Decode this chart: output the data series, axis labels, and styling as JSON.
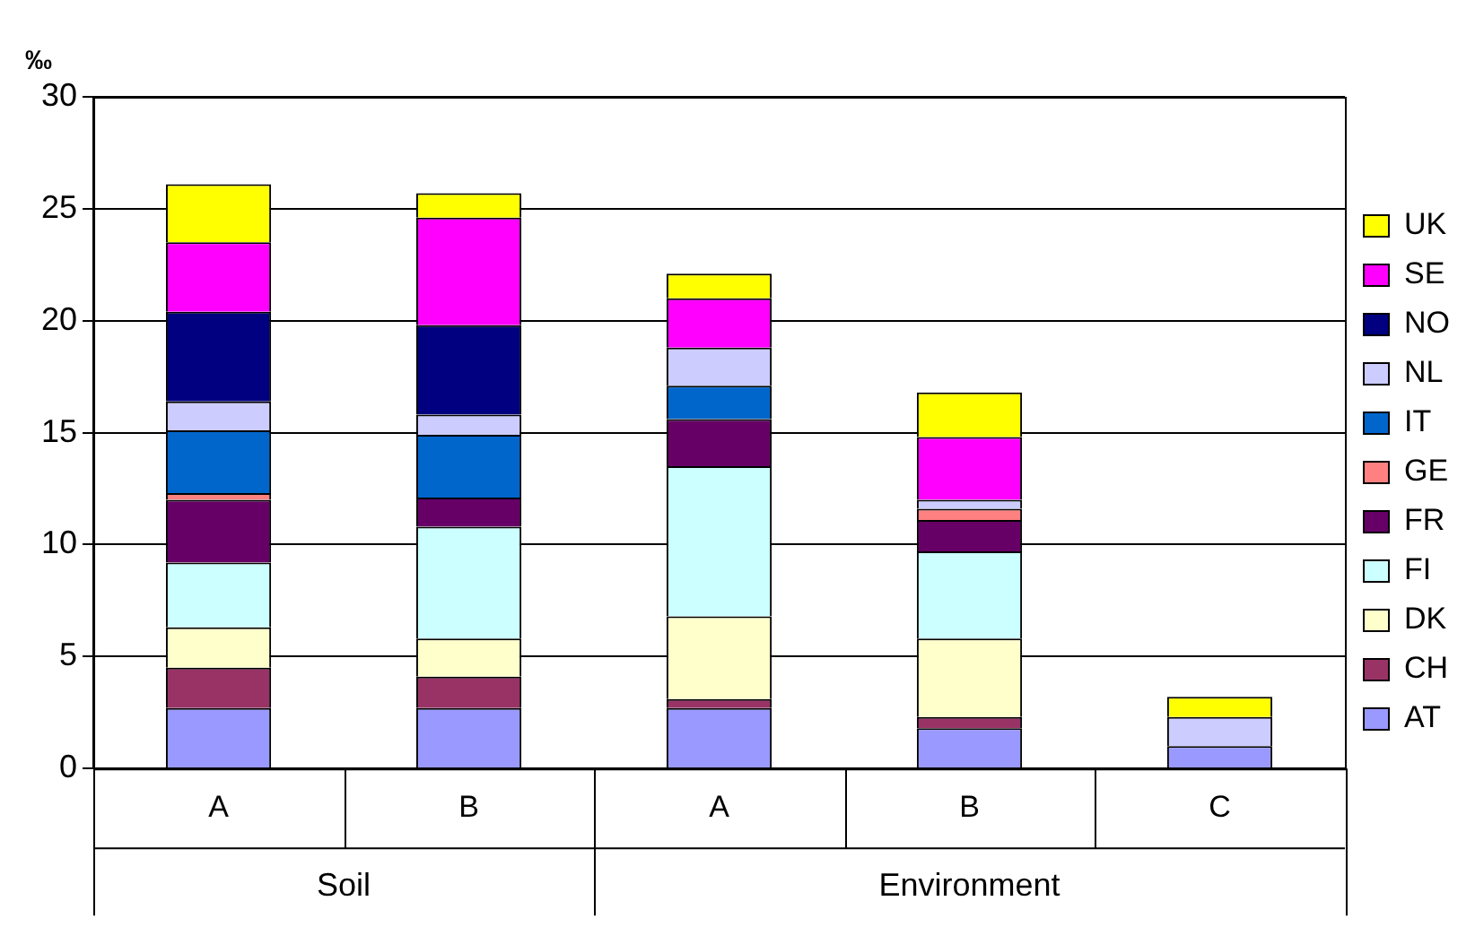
{
  "chart_data": {
    "type": "bar",
    "stacked": true,
    "ylabel": "‰",
    "categories": [
      "A",
      "B",
      "A",
      "B",
      "C"
    ],
    "annotations": [
      "Soil",
      "Environment"
    ],
    "ylim": [
      0,
      30
    ],
    "yticks": [
      0,
      5,
      10,
      15,
      20,
      25,
      30
    ],
    "grid": "y",
    "legend": "right",
    "series": [
      {
        "name": "AT",
        "color": "#9999ff",
        "values": [
          2.7,
          2.7,
          2.7,
          1.8,
          1.0
        ]
      },
      {
        "name": "CH",
        "color": "#993366",
        "values": [
          1.8,
          1.4,
          0.4,
          0.5,
          null
        ]
      },
      {
        "name": "DK",
        "color": "#ffffcc",
        "values": [
          1.8,
          1.7,
          3.7,
          3.5,
          null
        ]
      },
      {
        "name": "FI",
        "color": "#ccffff",
        "values": [
          2.9,
          5.0,
          6.7,
          3.9,
          null
        ]
      },
      {
        "name": "FR",
        "color": "#660066",
        "values": [
          2.8,
          1.3,
          2.1,
          1.4,
          null
        ]
      },
      {
        "name": "GE",
        "color": "#ff8080",
        "values": [
          0.3,
          null,
          null,
          0.5,
          null
        ]
      },
      {
        "name": "IT",
        "color": "#0066cc",
        "values": [
          2.8,
          2.8,
          1.5,
          null,
          null
        ]
      },
      {
        "name": "NL",
        "color": "#ccccff",
        "values": [
          1.3,
          0.9,
          1.7,
          0.4,
          1.3
        ]
      },
      {
        "name": "NO",
        "color": "#000080",
        "values": [
          4.0,
          4.0,
          null,
          null,
          null
        ]
      },
      {
        "name": "SE",
        "color": "#ff00ff",
        "values": [
          3.1,
          4.8,
          2.2,
          2.8,
          null
        ]
      },
      {
        "name": "UK",
        "color": "#ffff00",
        "values": [
          2.6,
          1.1,
          1.1,
          2.0,
          0.9
        ]
      }
    ]
  }
}
